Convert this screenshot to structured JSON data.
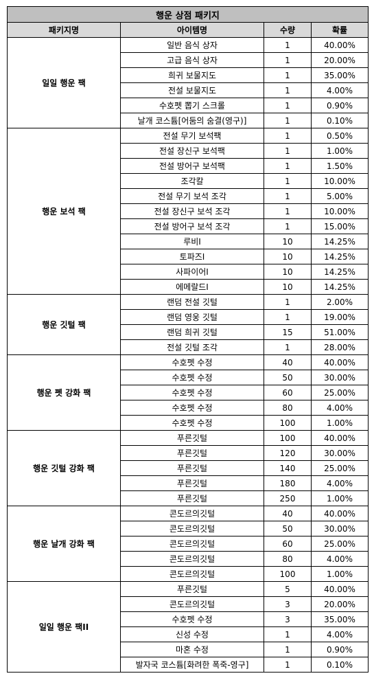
{
  "title": "행운 상점 패키지",
  "headers": [
    "패키지명",
    "아이템명",
    "수량",
    "확률"
  ],
  "packages": [
    {
      "name": "일일 행운 팩",
      "items": [
        {
          "item": "일반 음식 상자",
          "qty": "1",
          "prob": "40.00%"
        },
        {
          "item": "고급 음식 상자",
          "qty": "1",
          "prob": "20.00%"
        },
        {
          "item": "희귀 보물지도",
          "qty": "1",
          "prob": "35.00%"
        },
        {
          "item": "전설 보물지도",
          "qty": "1",
          "prob": "4.00%"
        },
        {
          "item": "수호펫 뽑기 스크롤",
          "qty": "1",
          "prob": "0.90%"
        },
        {
          "item": "날개 코스튬[어둠의 숨결(영구)]",
          "qty": "1",
          "prob": "0.10%"
        }
      ]
    },
    {
      "name": "행운 보석 팩",
      "items": [
        {
          "item": "전설 무기 보석팩",
          "qty": "1",
          "prob": "0.50%"
        },
        {
          "item": "전설 장신구 보석팩",
          "qty": "1",
          "prob": "1.00%"
        },
        {
          "item": "전설 방어구 보석팩",
          "qty": "1",
          "prob": "1.50%"
        },
        {
          "item": "조각칼",
          "qty": "1",
          "prob": "10.00%"
        },
        {
          "item": "전설 무기 보석 조각",
          "qty": "1",
          "prob": "5.00%"
        },
        {
          "item": "전설 장신구 보석 조각",
          "qty": "1",
          "prob": "10.00%"
        },
        {
          "item": "전설 방어구 보석 조각",
          "qty": "1",
          "prob": "15.00%"
        },
        {
          "item": "루비I",
          "qty": "10",
          "prob": "14.25%"
        },
        {
          "item": "토파즈I",
          "qty": "10",
          "prob": "14.25%"
        },
        {
          "item": "사파이어I",
          "qty": "10",
          "prob": "14.25%"
        },
        {
          "item": "에메랄드I",
          "qty": "10",
          "prob": "14.25%"
        }
      ]
    },
    {
      "name": "행운 깃털 팩",
      "items": [
        {
          "item": "랜덤 전설 깃털",
          "qty": "1",
          "prob": "2.00%"
        },
        {
          "item": "랜덤 영웅 깃털",
          "qty": "1",
          "prob": "19.00%"
        },
        {
          "item": "랜덤 희귀 깃털",
          "qty": "15",
          "prob": "51.00%"
        },
        {
          "item": "전설 깃털 조각",
          "qty": "1",
          "prob": "28.00%"
        }
      ]
    },
    {
      "name": "행운 펫 강화 팩",
      "items": [
        {
          "item": "수호펫 수정",
          "qty": "40",
          "prob": "40.00%"
        },
        {
          "item": "수호펫 수정",
          "qty": "50",
          "prob": "30.00%"
        },
        {
          "item": "수호펫 수정",
          "qty": "60",
          "prob": "25.00%"
        },
        {
          "item": "수호펫 수정",
          "qty": "80",
          "prob": "4.00%"
        },
        {
          "item": "수호펫 수정",
          "qty": "100",
          "prob": "1.00%"
        }
      ]
    },
    {
      "name": "행운 깃털 강화 팩",
      "items": [
        {
          "item": "푸른깃털",
          "qty": "100",
          "prob": "40.00%"
        },
        {
          "item": "푸른깃털",
          "qty": "120",
          "prob": "30.00%"
        },
        {
          "item": "푸른깃털",
          "qty": "140",
          "prob": "25.00%"
        },
        {
          "item": "푸른깃털",
          "qty": "180",
          "prob": "4.00%"
        },
        {
          "item": "푸른깃털",
          "qty": "250",
          "prob": "1.00%"
        }
      ]
    },
    {
      "name": "행운 날개 강화 팩",
      "items": [
        {
          "item": "콘도르의깃털",
          "qty": "40",
          "prob": "40.00%"
        },
        {
          "item": "콘도르의깃털",
          "qty": "50",
          "prob": "30.00%"
        },
        {
          "item": "콘도르의깃털",
          "qty": "60",
          "prob": "25.00%"
        },
        {
          "item": "콘도르의깃털",
          "qty": "80",
          "prob": "4.00%"
        },
        {
          "item": "콘도르의깃털",
          "qty": "100",
          "prob": "1.00%"
        }
      ]
    },
    {
      "name": "일일 행운 팩II",
      "items": [
        {
          "item": "푸른깃털",
          "qty": "5",
          "prob": "40.00%"
        },
        {
          "item": "콘도르의깃털",
          "qty": "3",
          "prob": "20.00%"
        },
        {
          "item": "수호펫 수정",
          "qty": "3",
          "prob": "35.00%"
        },
        {
          "item": "신성 수정",
          "qty": "1",
          "prob": "4.00%"
        },
        {
          "item": "마혼 수정",
          "qty": "1",
          "prob": "0.90%"
        },
        {
          "item": "발자국 코스튬[화려한 폭죽-영구]",
          "qty": "1",
          "prob": "0.10%"
        }
      ]
    }
  ]
}
